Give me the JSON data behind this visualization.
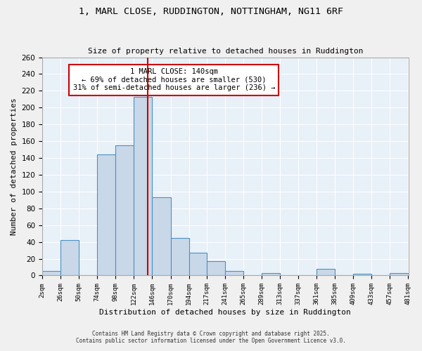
{
  "title1": "1, MARL CLOSE, RUDDINGTON, NOTTINGHAM, NG11 6RF",
  "title2": "Size of property relative to detached houses in Ruddington",
  "xlabel": "Distribution of detached houses by size in Ruddington",
  "ylabel": "Number of detached properties",
  "bar_edges": [
    2,
    26,
    50,
    74,
    98,
    122,
    146,
    170,
    194,
    217,
    241,
    265,
    289,
    313,
    337,
    361,
    385,
    409,
    433,
    457,
    481
  ],
  "bar_heights": [
    5,
    42,
    0,
    144,
    155,
    213,
    93,
    45,
    27,
    17,
    5,
    0,
    3,
    0,
    0,
    8,
    0,
    2,
    0,
    3
  ],
  "bar_color": "#c8d8e8",
  "bar_edge_color": "#4a90c4",
  "vline_x": 140,
  "vline_color": "#cc0000",
  "annotation_line1": "1 MARL CLOSE: 140sqm",
  "annotation_line2": "← 69% of detached houses are smaller (530)",
  "annotation_line3": "31% of semi-detached houses are larger (236) →",
  "annotation_box_color": "#ffffff",
  "annotation_box_edge": "#cc0000",
  "ylim": [
    0,
    260
  ],
  "tick_labels": [
    "2sqm",
    "26sqm",
    "50sqm",
    "74sqm",
    "98sqm",
    "122sqm",
    "146sqm",
    "170sqm",
    "194sqm",
    "217sqm",
    "241sqm",
    "265sqm",
    "289sqm",
    "313sqm",
    "337sqm",
    "361sqm",
    "385sqm",
    "409sqm",
    "433sqm",
    "457sqm",
    "481sqm"
  ],
  "background_color": "#e8f0f8",
  "footnote1": "Contains HM Land Registry data © Crown copyright and database right 2025.",
  "footnote2": "Contains public sector information licensed under the Open Government Licence v3.0."
}
